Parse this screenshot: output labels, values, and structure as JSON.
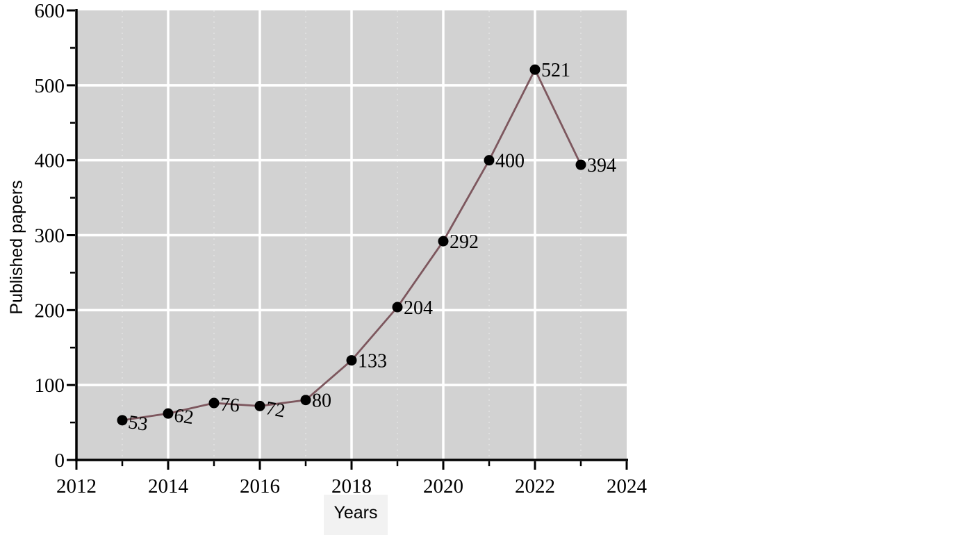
{
  "chart_data": {
    "type": "line",
    "title": "",
    "xlabel": "Years",
    "ylabel": "Published papers",
    "x": [
      2013,
      2014,
      2015,
      2016,
      2017,
      2018,
      2019,
      2020,
      2021,
      2022,
      2023
    ],
    "values": [
      53,
      62,
      76,
      72,
      80,
      133,
      204,
      292,
      400,
      521,
      394
    ],
    "point_labels": [
      "53",
      "62",
      "76",
      "72",
      "80",
      "133",
      "204",
      "292",
      "400",
      "521",
      "394"
    ],
    "label_rotations": [
      8,
      8,
      4,
      10,
      0,
      0,
      0,
      0,
      0,
      0,
      0
    ],
    "xlim": [
      2012,
      2024
    ],
    "ylim": [
      0,
      600
    ],
    "x_major_ticks": [
      2012,
      2014,
      2016,
      2018,
      2020,
      2022,
      2024
    ],
    "x_minor_ticks": [
      2013,
      2015,
      2017,
      2019,
      2021,
      2023
    ],
    "y_major_ticks": [
      0,
      100,
      200,
      300,
      400,
      500,
      600
    ],
    "y_minor_step": 50,
    "legend": null,
    "grid": {
      "major_gridlines": true,
      "minor_vertical_dotted": true,
      "minor_horizontal": false
    }
  },
  "style": {
    "panel_bg": "#d2d2d2",
    "grid_major": "#ffffff",
    "grid_minor": "#e3e3e3",
    "line_color": "#7d575e",
    "marker_color": "#000000",
    "axis_color": "#000000",
    "text_color": "#000000",
    "xlabel_box_bg": "#f2f2f2",
    "page_bg": "#ffffff"
  }
}
